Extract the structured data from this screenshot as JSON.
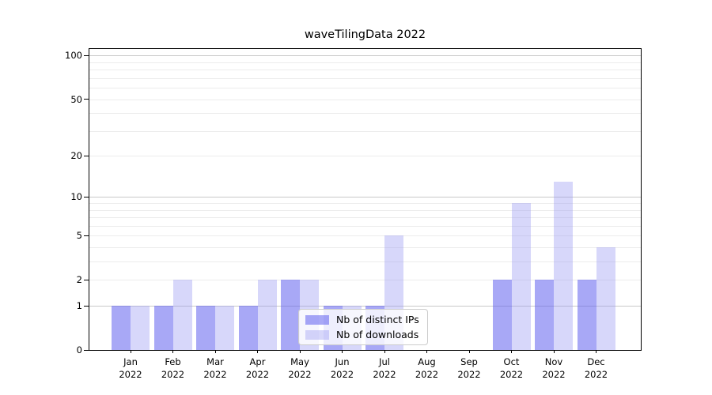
{
  "figure": {
    "title": "waveTilingData 2022"
  },
  "chart_data": {
    "type": "bar",
    "title": "waveTilingData 2022",
    "categories": [
      "Jan",
      "Feb",
      "Mar",
      "Apr",
      "May",
      "Jun",
      "Jul",
      "Aug",
      "Sep",
      "Oct",
      "Nov",
      "Dec"
    ],
    "category_year": "2022",
    "series": [
      {
        "name": "Nb of distinct IPs",
        "color": "rgba(97,97,238,0.55)",
        "values": [
          1,
          1,
          1,
          1,
          2,
          1,
          1,
          0,
          0,
          2,
          2,
          2
        ]
      },
      {
        "name": "Nb of downloads",
        "color": "rgba(150,150,243,0.38)",
        "values": [
          1,
          2,
          1,
          2,
          2,
          1,
          5,
          0,
          0,
          9,
          13,
          4
        ]
      }
    ],
    "xlabel": "",
    "ylabel": "",
    "yscale": "log1p",
    "ylim": [
      0,
      111
    ],
    "ytick_values": [
      100,
      50,
      20,
      10,
      5,
      2,
      1,
      0
    ],
    "ytick_labels": [
      "100",
      "50",
      "20",
      "10",
      "5",
      "2",
      "1",
      "0"
    ],
    "major_gridline_values": [
      1,
      10,
      100
    ],
    "minor_gridline_values": [
      2,
      3,
      4,
      5,
      6,
      7,
      8,
      9,
      20,
      30,
      40,
      50,
      60,
      70,
      80,
      90
    ],
    "grid": "on",
    "legend_position": "lower center",
    "colors": {
      "major_grid": "#c8c8c8",
      "minor_grid": "#ececec",
      "spine": "#000000",
      "text": "#000000",
      "legend_border": "#cccccc"
    }
  }
}
